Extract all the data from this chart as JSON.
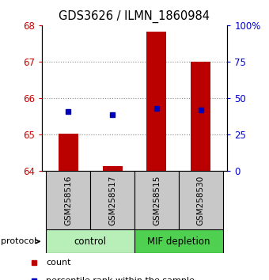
{
  "title": "GDS3626 / ILMN_1860984",
  "samples": [
    "GSM258516",
    "GSM258517",
    "GSM258515",
    "GSM258530"
  ],
  "bar_bottom": 64.0,
  "bar_tops": [
    65.02,
    64.12,
    67.82,
    67.0
  ],
  "percentile_values": [
    65.62,
    65.54,
    65.72,
    65.68
  ],
  "ylim": [
    64,
    68
  ],
  "yticks_left": [
    64,
    65,
    66,
    67,
    68
  ],
  "yticks_right": [
    0,
    25,
    50,
    75,
    100
  ],
  "bar_color": "#BB0000",
  "blue_color": "#0000BB",
  "grid_color": "#888888",
  "bar_color_left": "#CC0000",
  "label_color_right": "#0000CC",
  "control_color": "#B8EEB8",
  "mif_color": "#50D050",
  "sample_box_color": "#C8C8C8"
}
